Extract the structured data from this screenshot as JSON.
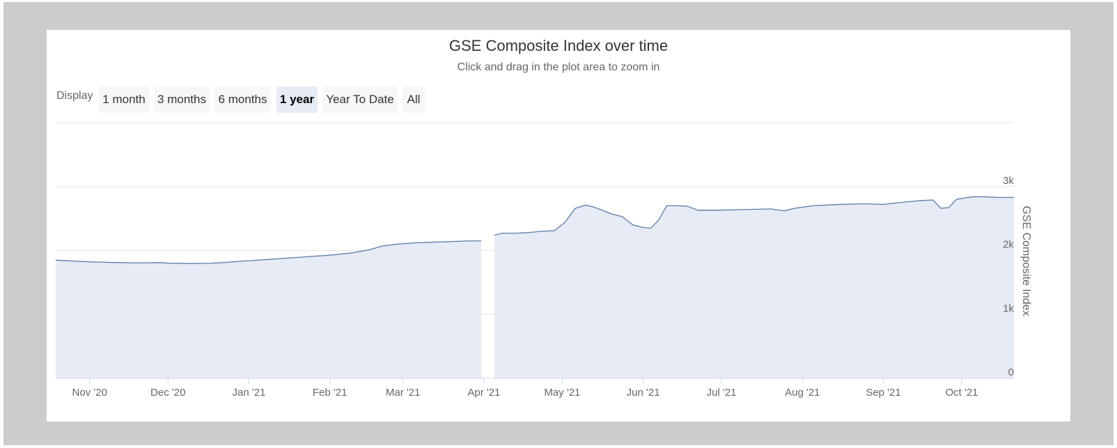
{
  "chart_data": {
    "type": "area",
    "title": "GSE Composite Index over time",
    "subtitle": "Click and drag in the plot area to zoom in",
    "ylabel": "GSE Composite Index",
    "xlabel": "",
    "ylim": [
      0,
      4000
    ],
    "yticks": [
      0,
      1000,
      2000,
      3000
    ],
    "ytick_labels": [
      "0",
      "1k",
      "2k",
      "3k"
    ],
    "grid": true,
    "xlim": [
      "2020-10-19",
      "2021-10-21"
    ],
    "xticks": [
      {
        "date": "2020-11-01",
        "label": "Nov '20"
      },
      {
        "date": "2020-12-01",
        "label": "Dec '20"
      },
      {
        "date": "2021-01-01",
        "label": "Jan '21"
      },
      {
        "date": "2021-02-01",
        "label": "Feb '21"
      },
      {
        "date": "2021-03-01",
        "label": "Mar '21"
      },
      {
        "date": "2021-04-01",
        "label": "Apr '21"
      },
      {
        "date": "2021-05-01",
        "label": "May '21"
      },
      {
        "date": "2021-06-01",
        "label": "Jun '21"
      },
      {
        "date": "2021-07-01",
        "label": "Jul '21"
      },
      {
        "date": "2021-08-01",
        "label": "Aug '21"
      },
      {
        "date": "2021-09-01",
        "label": "Sep '21"
      },
      {
        "date": "2021-10-01",
        "label": "Oct '21"
      }
    ],
    "colors": {
      "line": "#5b7ba8",
      "fill": "#e6ebf5"
    },
    "series": [
      {
        "points": [
          [
            "2020-10-19",
            1850
          ],
          [
            "2020-10-23",
            1840
          ],
          [
            "2020-10-28",
            1830
          ],
          [
            "2020-11-03",
            1820
          ],
          [
            "2020-11-08",
            1815
          ],
          [
            "2020-11-13",
            1810
          ],
          [
            "2020-11-20",
            1805
          ],
          [
            "2020-11-27",
            1810
          ],
          [
            "2020-12-03",
            1800
          ],
          [
            "2020-12-10",
            1795
          ],
          [
            "2020-12-17",
            1800
          ],
          [
            "2020-12-22",
            1810
          ],
          [
            "2020-12-28",
            1830
          ],
          [
            "2021-01-05",
            1850
          ],
          [
            "2021-01-12",
            1870
          ],
          [
            "2021-01-19",
            1890
          ],
          [
            "2021-01-26",
            1910
          ],
          [
            "2021-02-02",
            1930
          ],
          [
            "2021-02-09",
            1960
          ],
          [
            "2021-02-16",
            2010
          ],
          [
            "2021-02-21",
            2070
          ],
          [
            "2021-02-27",
            2100
          ],
          [
            "2021-03-06",
            2120
          ],
          [
            "2021-03-13",
            2130
          ],
          [
            "2021-03-20",
            2140
          ],
          [
            "2021-03-26",
            2150
          ],
          [
            "2021-03-31",
            2150
          ]
        ]
      },
      {
        "points": [
          [
            "2021-04-05",
            2240
          ],
          [
            "2021-04-08",
            2270
          ],
          [
            "2021-04-13",
            2270
          ],
          [
            "2021-04-18",
            2280
          ],
          [
            "2021-04-23",
            2300
          ],
          [
            "2021-04-28",
            2310
          ],
          [
            "2021-05-02",
            2440
          ],
          [
            "2021-05-06",
            2660
          ],
          [
            "2021-05-10",
            2710
          ],
          [
            "2021-05-13",
            2680
          ],
          [
            "2021-05-17",
            2620
          ],
          [
            "2021-05-20",
            2570
          ],
          [
            "2021-05-24",
            2530
          ],
          [
            "2021-05-28",
            2400
          ],
          [
            "2021-06-01",
            2360
          ],
          [
            "2021-06-04",
            2350
          ],
          [
            "2021-06-07",
            2480
          ],
          [
            "2021-06-10",
            2700
          ],
          [
            "2021-06-14",
            2700
          ],
          [
            "2021-06-18",
            2690
          ],
          [
            "2021-06-22",
            2630
          ],
          [
            "2021-06-30",
            2630
          ],
          [
            "2021-07-10",
            2640
          ],
          [
            "2021-07-20",
            2650
          ],
          [
            "2021-07-25",
            2620
          ],
          [
            "2021-07-29",
            2660
          ],
          [
            "2021-08-05",
            2700
          ],
          [
            "2021-08-15",
            2720
          ],
          [
            "2021-08-25",
            2730
          ],
          [
            "2021-09-01",
            2720
          ],
          [
            "2021-09-05",
            2740
          ],
          [
            "2021-09-10",
            2760
          ],
          [
            "2021-09-15",
            2780
          ],
          [
            "2021-09-20",
            2790
          ],
          [
            "2021-09-23",
            2660
          ],
          [
            "2021-09-26",
            2670
          ],
          [
            "2021-09-29",
            2800
          ],
          [
            "2021-10-05",
            2840
          ],
          [
            "2021-10-10",
            2840
          ],
          [
            "2021-10-15",
            2830
          ],
          [
            "2021-10-21",
            2830
          ]
        ]
      }
    ]
  },
  "range_selector": {
    "label": "Display",
    "buttons": [
      {
        "label": "1 month",
        "selected": false
      },
      {
        "label": "3 months",
        "selected": false
      },
      {
        "label": "6 months",
        "selected": false
      },
      {
        "label": "1 year",
        "selected": true
      },
      {
        "label": "Year To Date",
        "selected": false
      },
      {
        "label": "All",
        "selected": false
      }
    ]
  }
}
